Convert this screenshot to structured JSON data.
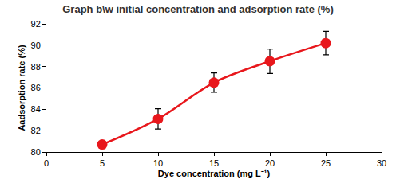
{
  "chart_data": {
    "type": "line",
    "title": "Graph b\\w initial concentration and adsorption rate (%)",
    "x_label": "Dye concentration (mg L⁻¹)",
    "y_label": "Aadsorption rate (%)",
    "x": [
      5,
      10,
      15,
      20,
      25
    ],
    "values": [
      80.7,
      83.1,
      86.5,
      88.5,
      90.2
    ],
    "errors": [
      0,
      0.95,
      0.9,
      1.15,
      1.1
    ],
    "color": "#e8171c",
    "marker": "circle",
    "line_style": "smooth",
    "xlim": [
      0,
      30
    ],
    "xticks": [
      0,
      5,
      10,
      15,
      20,
      25,
      30
    ],
    "ylim": [
      80,
      92
    ],
    "yticks": [
      80,
      82,
      84,
      86,
      88,
      90,
      92
    ],
    "grid": false
  }
}
